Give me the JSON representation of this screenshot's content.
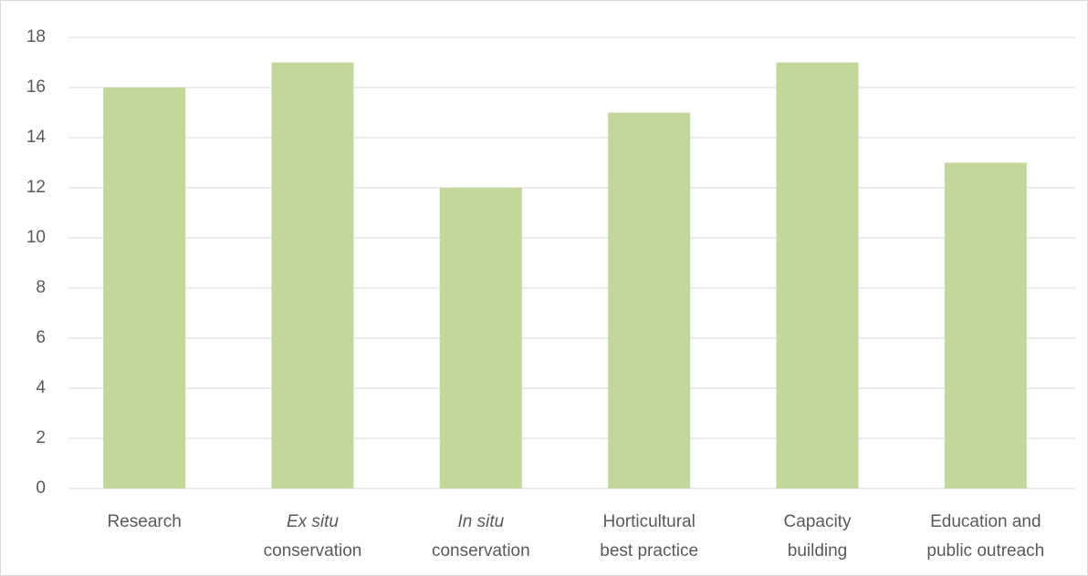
{
  "chart_data": {
    "type": "bar",
    "categories": [
      [
        "Research"
      ],
      [
        "Ex situ",
        "conservation"
      ],
      [
        "In situ",
        "conservation"
      ],
      [
        "Horticultural",
        "best practice"
      ],
      [
        "Capacity",
        "building"
      ],
      [
        "Education and",
        "public outreach"
      ]
    ],
    "values": [
      16,
      17,
      12,
      15,
      17,
      13
    ],
    "color": "#c4d79b",
    "ylim": [
      0,
      18
    ],
    "yticks": [
      0,
      2,
      4,
      6,
      8,
      10,
      12,
      14,
      16,
      18
    ],
    "grid": true
  }
}
